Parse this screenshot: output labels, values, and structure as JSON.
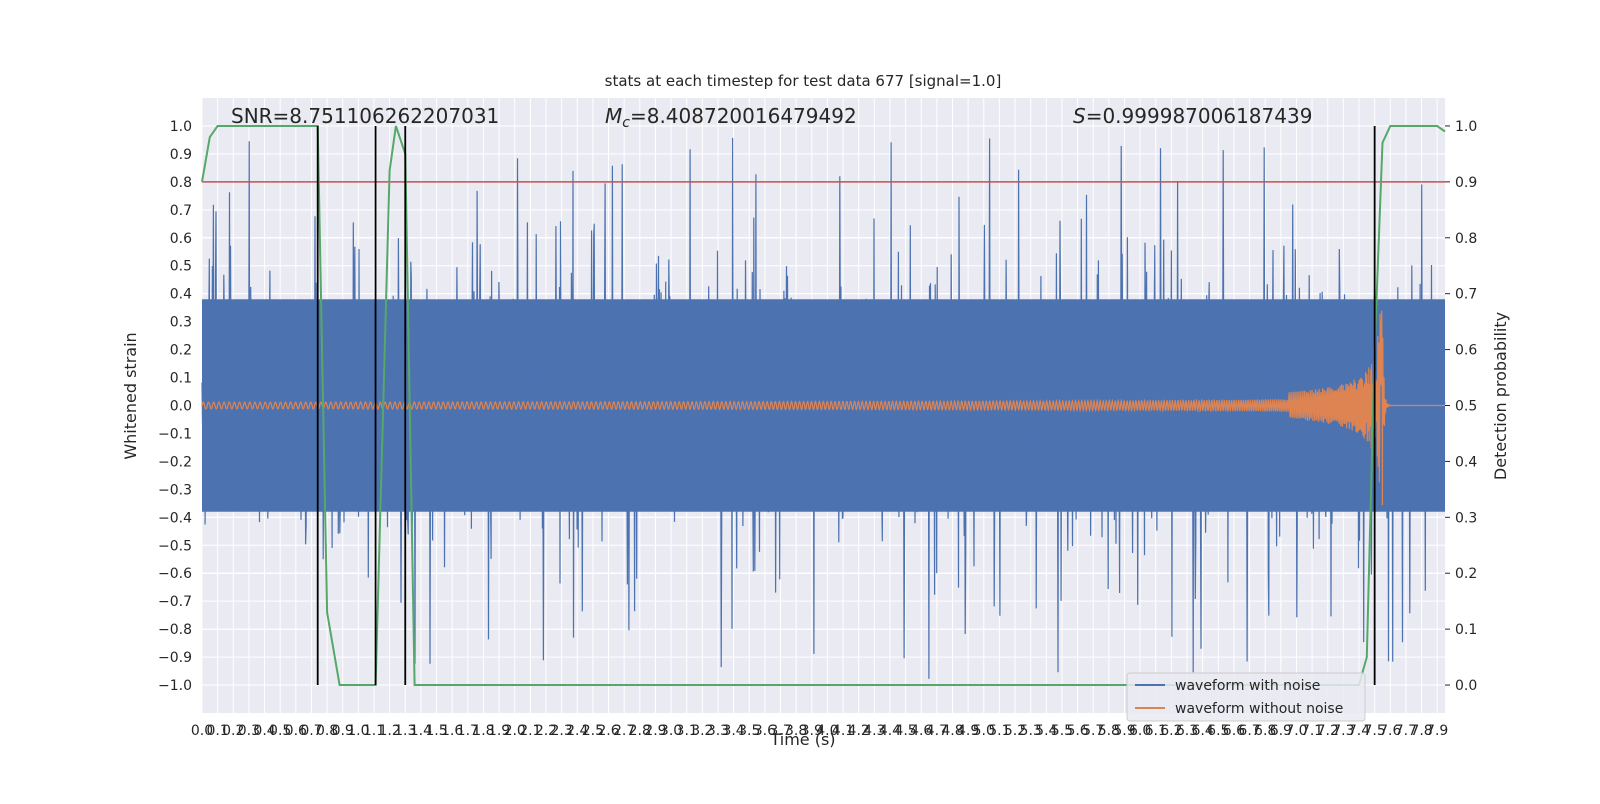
{
  "chart_data": {
    "type": "line",
    "title": "stats at each timestep for test data 677 [signal=1.0]",
    "xlabel": "Time (s)",
    "ylabel": "Whitened strain",
    "y2label": "Detection probability",
    "xlim": [
      0.0,
      7.95
    ],
    "ylim": [
      -1.1,
      1.1
    ],
    "y2lim": [
      -0.05,
      1.05
    ],
    "grid": true,
    "x_ticks": [
      0.0,
      0.1,
      0.2,
      0.3,
      0.4,
      0.5,
      0.6,
      0.7,
      0.8,
      0.9,
      1.0,
      1.1,
      1.2,
      1.3,
      1.4,
      1.5,
      1.6,
      1.7,
      1.8,
      1.9,
      2.0,
      2.1,
      2.2,
      2.3,
      2.4,
      2.5,
      2.6,
      2.7,
      2.8,
      2.9,
      3.0,
      3.1,
      3.2,
      3.3,
      3.4,
      3.5,
      3.6,
      3.7,
      3.8,
      3.9,
      4.0,
      4.1,
      4.2,
      4.3,
      4.4,
      4.5,
      4.6,
      4.7,
      4.8,
      4.9,
      5.0,
      5.1,
      5.2,
      5.3,
      5.4,
      5.5,
      5.6,
      5.7,
      5.8,
      5.9,
      6.0,
      6.1,
      6.2,
      6.3,
      6.4,
      6.5,
      6.6,
      6.7,
      6.8,
      6.9,
      7.0,
      7.1,
      7.2,
      7.3,
      7.4,
      7.5,
      7.6,
      7.7,
      7.8,
      7.9
    ],
    "x_tick_labels": [
      "0.0",
      "0.1",
      "0.2",
      "0.3",
      "0.4",
      "0.5",
      "0.6",
      "0.7",
      "0.8",
      "0.9",
      "1.0",
      "1.1",
      "1.2",
      "1.3",
      "1.4",
      "1.5",
      "1.6",
      "1.7",
      "1.8",
      "1.9",
      "2.0",
      "2.1",
      "2.2",
      "2.3",
      "2.4",
      "2.5",
      "2.6",
      "2.7",
      "2.8",
      "2.9",
      "3.0",
      "3.1",
      "3.2",
      "3.3",
      "3.4",
      "3.5",
      "3.6",
      "3.7",
      "3.8",
      "3.9",
      "4.0",
      "4.1",
      "4.2",
      "4.3",
      "4.4",
      "4.5",
      "4.6",
      "4.7",
      "4.8",
      "4.9",
      "5.0",
      "5.1",
      "5.2",
      "5.3",
      "5.4",
      "5.5",
      "5.6",
      "5.7",
      "5.8",
      "5.9",
      "6.0",
      "6.1",
      "6.2",
      "6.3",
      "6.4",
      "6.5",
      "6.6",
      "6.7",
      "6.8",
      "6.9",
      "7.0",
      "7.1",
      "7.2",
      "7.3",
      "7.4",
      "7.5",
      "7.6",
      "7.7",
      "7.8",
      "7.9"
    ],
    "y_ticks": [
      -1.0,
      -0.9,
      -0.8,
      -0.7,
      -0.6,
      -0.5,
      -0.4,
      -0.3,
      -0.2,
      -0.1,
      0.0,
      0.1,
      0.2,
      0.3,
      0.4,
      0.5,
      0.6,
      0.7,
      0.8,
      0.9,
      1.0
    ],
    "y_tick_labels": [
      "−1.0",
      "−0.9",
      "−0.8",
      "−0.7",
      "−0.6",
      "−0.5",
      "−0.4",
      "−0.3",
      "−0.2",
      "−0.1",
      "0.0",
      "0.1",
      "0.2",
      "0.3",
      "0.4",
      "0.5",
      "0.6",
      "0.7",
      "0.8",
      "0.9",
      "1.0"
    ],
    "y2_ticks": [
      0.0,
      0.1,
      0.2,
      0.3,
      0.4,
      0.5,
      0.6,
      0.7,
      0.8,
      0.9,
      1.0
    ],
    "y2_tick_labels": [
      "0.0",
      "0.1",
      "0.2",
      "0.3",
      "0.4",
      "0.5",
      "0.6",
      "0.7",
      "0.8",
      "0.9",
      "1.0"
    ],
    "annotations": {
      "snr": "SNR=8.751106262207031",
      "mc_symbol": "M",
      "mc_subscript": "c",
      "mc_value": "=8.408720016479492",
      "s_symbol": "S",
      "s_value": "=0.999987006187439"
    },
    "series": [
      {
        "name": "waveform with noise",
        "color": "#4c72b0",
        "kind": "noise",
        "amplitude_core": 0.38,
        "amplitude_peak_max": 0.98
      },
      {
        "name": "waveform without noise",
        "color": "#dd8452",
        "kind": "chirp",
        "merger_time": 7.55,
        "peak_amplitude": 0.37,
        "initial_amplitude": 0.012
      },
      {
        "name": "Detection probability",
        "color": "#55a868",
        "axis": "right",
        "x": [
          0.0,
          0.05,
          0.1,
          0.2,
          0.3,
          0.4,
          0.5,
          0.6,
          0.7,
          0.74,
          0.8,
          0.88,
          0.96,
          1.04,
          1.11,
          1.2,
          1.24,
          1.3,
          1.36,
          1.38,
          1.42,
          1.5,
          2.0,
          3.0,
          4.0,
          5.0,
          6.0,
          7.0,
          7.3,
          7.4,
          7.45,
          7.5,
          7.55,
          7.6,
          7.7,
          7.8,
          7.9,
          7.95
        ],
        "y": [
          0.9,
          0.98,
          1.0,
          1.0,
          1.0,
          1.0,
          1.0,
          1.0,
          1.0,
          1.0,
          0.13,
          0.0,
          0.0,
          0.0,
          0.0,
          0.92,
          1.0,
          0.95,
          0.0,
          0.0,
          0.0,
          0.0,
          0.0,
          0.0,
          0.0,
          0.0,
          0.0,
          0.0,
          0.0,
          0.0,
          0.05,
          0.6,
          0.97,
          1.0,
          1.0,
          1.0,
          1.0,
          0.99
        ]
      }
    ],
    "threshold": {
      "value": 0.9,
      "axis": "right",
      "color": "#c44e52"
    },
    "vlines": {
      "x": [
        0.74,
        1.11,
        1.3,
        7.5
      ],
      "color": "#000000"
    },
    "legend": {
      "placement": "lower-right",
      "entries": [
        "waveform with noise",
        "waveform without noise"
      ]
    }
  }
}
